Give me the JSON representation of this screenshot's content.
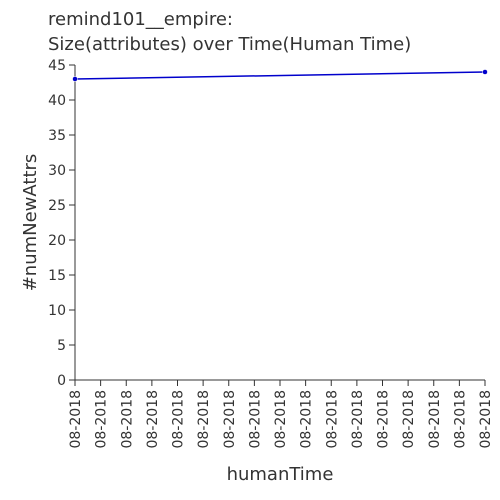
{
  "chart_data": {
    "type": "line",
    "title_lines": [
      "remind101__empire:",
      "Size(attributes) over Time(Human Time)"
    ],
    "xlabel": "humanTime",
    "ylabel": "#numNewAttrs",
    "categories": [
      "08-2018",
      "08-2018",
      "08-2018",
      "08-2018",
      "08-2018",
      "08-2018",
      "08-2018",
      "08-2018",
      "08-2018",
      "08-2018",
      "08-2018",
      "08-2018",
      "08-2018",
      "08-2018",
      "08-2018",
      "08-2018",
      "08-2018"
    ],
    "yticks": [
      0,
      5,
      10,
      15,
      20,
      25,
      30,
      35,
      40,
      45
    ],
    "ylim": [
      0,
      45
    ],
    "grid": false,
    "legend": "none",
    "series": [
      {
        "color": "#0000cc",
        "points": [
          {
            "x": 0,
            "y": 43
          },
          {
            "x": 16,
            "y": 44
          }
        ]
      }
    ]
  }
}
